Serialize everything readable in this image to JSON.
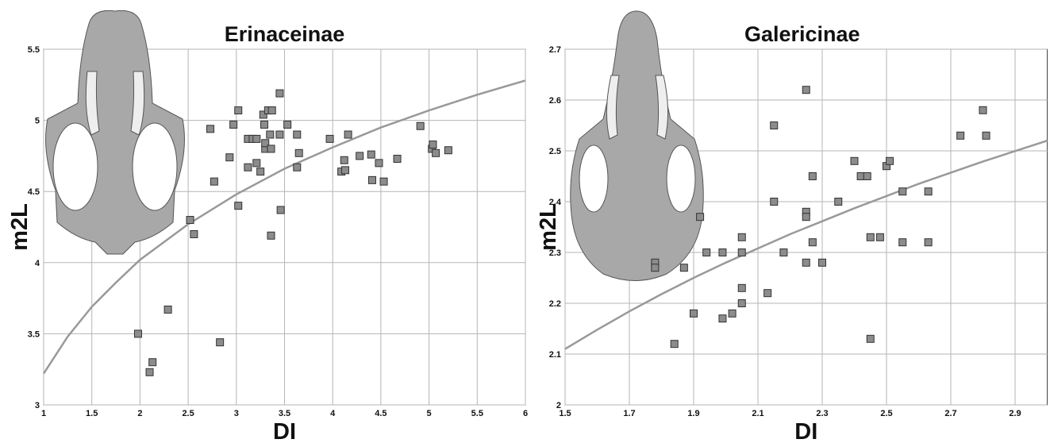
{
  "chart_data": [
    {
      "type": "scatter",
      "title": "Erinaceinae",
      "x_label": "DI",
      "y_label": "m2L",
      "xlim": [
        1,
        6
      ],
      "ylim": [
        3,
        5.5
      ],
      "xticks": [
        1,
        1.5,
        2,
        2.5,
        3,
        3.5,
        4,
        4.5,
        5,
        5.5,
        6
      ],
      "yticks": [
        3,
        3.5,
        4,
        4.5,
        5,
        5.5
      ],
      "grid": true,
      "color": "#8c8c8c",
      "x": [
        1.98,
        2.1,
        2.13,
        2.29,
        2.52,
        2.56,
        2.77,
        2.73,
        2.83,
        2.93,
        2.97,
        3.02,
        3.02,
        3.12,
        3.12,
        3.17,
        3.21,
        3.21,
        3.25,
        3.28,
        3.29,
        3.3,
        3.3,
        3.33,
        3.35,
        3.36,
        3.37,
        3.36,
        3.45,
        3.45,
        3.46,
        3.53,
        3.63,
        3.63,
        3.65,
        3.97,
        4.09,
        4.12,
        4.13,
        4.16,
        4.28,
        4.4,
        4.41,
        4.48,
        4.53,
        4.67,
        4.91,
        5.03,
        5.04,
        5.07,
        5.2
      ],
      "values": [
        3.5,
        3.23,
        3.3,
        3.67,
        4.3,
        4.2,
        4.57,
        4.94,
        3.44,
        4.74,
        4.97,
        5.07,
        4.4,
        4.67,
        4.87,
        4.87,
        4.87,
        4.7,
        4.64,
        5.04,
        4.97,
        4.8,
        4.84,
        5.07,
        4.9,
        4.8,
        5.07,
        4.19,
        5.19,
        4.9,
        4.37,
        4.97,
        4.9,
        4.67,
        4.77,
        4.87,
        4.64,
        4.72,
        4.65,
        4.9,
        4.75,
        4.76,
        4.58,
        4.7,
        4.57,
        4.73,
        4.96,
        4.8,
        4.83,
        4.77,
        4.79
      ],
      "fit_line": {
        "color": "#999999",
        "x": [
          1,
          1.25,
          1.5,
          1.75,
          2,
          2.5,
          3,
          3.5,
          4,
          4.5,
          5,
          5.5,
          6
        ],
        "values": [
          3.22,
          3.48,
          3.69,
          3.86,
          4.02,
          4.27,
          4.48,
          4.66,
          4.81,
          4.95,
          5.07,
          5.18,
          5.28
        ]
      }
    },
    {
      "type": "scatter",
      "title": "Galericinae",
      "x_label": "DI",
      "y_label": "m2L",
      "xlim": [
        1.5,
        3.0
      ],
      "ylim": [
        2,
        2.7
      ],
      "xticks": [
        1.5,
        1.7,
        1.9,
        2.1,
        2.3,
        2.5,
        2.7,
        2.9
      ],
      "yticks": [
        2,
        2.1,
        2.2,
        2.3,
        2.4,
        2.5,
        2.6,
        2.7
      ],
      "grid": true,
      "color": "#8c8c8c",
      "x": [
        1.78,
        1.78,
        1.84,
        1.87,
        1.9,
        1.92,
        1.94,
        1.99,
        1.99,
        2.02,
        2.05,
        2.05,
        2.05,
        2.05,
        2.13,
        2.15,
        2.15,
        2.18,
        2.25,
        2.25,
        2.25,
        2.25,
        2.27,
        2.27,
        2.3,
        2.35,
        2.4,
        2.42,
        2.44,
        2.45,
        2.45,
        2.48,
        2.5,
        2.51,
        2.55,
        2.55,
        2.63,
        2.63,
        2.73,
        2.8,
        2.81
      ],
      "values": [
        2.28,
        2.27,
        2.12,
        2.27,
        2.18,
        2.37,
        2.3,
        2.3,
        2.17,
        2.18,
        2.33,
        2.3,
        2.23,
        2.2,
        2.22,
        2.55,
        2.4,
        2.3,
        2.62,
        2.38,
        2.37,
        2.28,
        2.45,
        2.32,
        2.28,
        2.4,
        2.48,
        2.45,
        2.45,
        2.33,
        2.13,
        2.33,
        2.47,
        2.48,
        2.42,
        2.32,
        2.42,
        2.32,
        2.53,
        2.58,
        2.53
      ],
      "fit_line": {
        "color": "#999999",
        "x": [
          1.5,
          1.6,
          1.7,
          1.8,
          1.9,
          2.0,
          2.2,
          2.4,
          2.6,
          2.8,
          3.0
        ],
        "values": [
          2.11,
          2.148,
          2.184,
          2.218,
          2.25,
          2.28,
          2.336,
          2.387,
          2.435,
          2.479,
          2.52
        ]
      }
    }
  ]
}
